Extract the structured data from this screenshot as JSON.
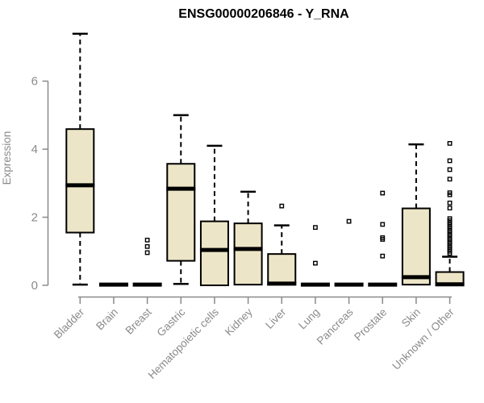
{
  "chart_data": {
    "type": "boxplot",
    "title": "ENSG00000206846 - Y_RNA",
    "ylabel": "Expression",
    "xlabel": "",
    "yticks": [
      0,
      2,
      4,
      6
    ],
    "ylim": [
      0,
      7.4
    ],
    "grid": false,
    "legend": "none",
    "categories": [
      "Bladder",
      "Brain",
      "Breast",
      "Gastric",
      "Hematopoietic cells",
      "Kidney",
      "Liver",
      "Lung",
      "Pancreas",
      "Prostate",
      "Skin",
      "Unknown / Other"
    ],
    "boxes": [
      {
        "category": "Bladder",
        "whisker_low": 0.02,
        "q1": 1.55,
        "median": 2.94,
        "q3": 4.59,
        "whisker_high": 7.39,
        "outliers": []
      },
      {
        "category": "Brain",
        "whisker_low": 0,
        "q1": 0,
        "median": 0.02,
        "q3": 0,
        "whisker_high": 0,
        "outliers": []
      },
      {
        "category": "Breast",
        "whisker_low": 0,
        "q1": 0,
        "median": 0.02,
        "q3": 0,
        "whisker_high": 0,
        "outliers": [
          1.33,
          1.14,
          0.96
        ]
      },
      {
        "category": "Gastric",
        "whisker_low": 0.04,
        "q1": 0.72,
        "median": 2.84,
        "q3": 3.57,
        "whisker_high": 5.0,
        "outliers": []
      },
      {
        "category": "Hematopoietic cells",
        "whisker_low": 0,
        "q1": 0,
        "median": 1.04,
        "q3": 1.88,
        "whisker_high": 4.1,
        "outliers": []
      },
      {
        "category": "Kidney",
        "whisker_low": 0,
        "q1": 0.02,
        "median": 1.07,
        "q3": 1.82,
        "whisker_high": 2.75,
        "outliers": []
      },
      {
        "category": "Liver",
        "whisker_low": 0,
        "q1": 0.02,
        "median": 0.05,
        "q3": 0.92,
        "whisker_high": 1.76,
        "outliers": [
          2.33
        ]
      },
      {
        "category": "Lung",
        "whisker_low": 0,
        "q1": 0,
        "median": 0.02,
        "q3": 0,
        "whisker_high": 0,
        "outliers": [
          1.7,
          0.65
        ]
      },
      {
        "category": "Pancreas",
        "whisker_low": 0,
        "q1": 0,
        "median": 0.02,
        "q3": 0,
        "whisker_high": 0,
        "outliers": [
          1.88
        ]
      },
      {
        "category": "Prostate",
        "whisker_low": 0,
        "q1": 0,
        "median": 0.02,
        "q3": 0,
        "whisker_high": 0,
        "outliers": [
          2.71,
          1.79,
          1.4,
          1.35,
          0.86
        ]
      },
      {
        "category": "Skin",
        "whisker_low": 0,
        "q1": 0.02,
        "median": 0.24,
        "q3": 2.26,
        "whisker_high": 4.14,
        "outliers": []
      },
      {
        "category": "Unknown / Other",
        "whisker_low": 0,
        "q1": 0,
        "median": 0.03,
        "q3": 0.39,
        "whisker_high": 0.84,
        "outliers": [
          4.17,
          3.66,
          3.4,
          3.12,
          2.72,
          2.66,
          2.42,
          2.27,
          1.96,
          1.9,
          1.84,
          1.78,
          1.72,
          1.66,
          1.6,
          1.54,
          1.48,
          1.42,
          1.36,
          1.3,
          1.24,
          1.18,
          1.12,
          1.06,
          1.0,
          0.94
        ]
      }
    ],
    "colors": {
      "box_fill": "#ece5c7",
      "box_border": "#000000",
      "median": "#000000",
      "whisker": "#000000",
      "axis": "#8a8a8a",
      "tick_label": "#8a8a8a",
      "title": "#000000"
    }
  }
}
